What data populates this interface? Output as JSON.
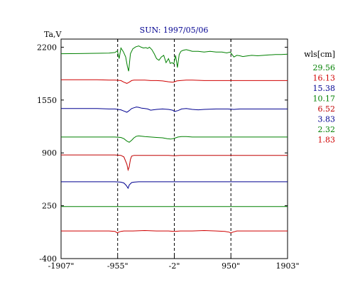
{
  "chart_data": {
    "type": "line",
    "title": "SUN: 1997/05/06",
    "ylabel": "Ta,V",
    "xlabel": "",
    "xlim": [
      -1907,
      1903
    ],
    "ylim": [
      -400,
      2300
    ],
    "x_ticks": [
      -1907,
      -955,
      -2,
      950,
      1903
    ],
    "x_tick_labels": [
      "-1907\"",
      "-955\"",
      "-2\"",
      "950\"",
      "1903\""
    ],
    "y_ticks": [
      2200,
      1550,
      900,
      250,
      -400
    ],
    "y_tick_labels": [
      "2200",
      "1550",
      "900",
      "250",
      "-400"
    ],
    "vertical_dashed_lines_x": [
      -955,
      -2,
      950
    ],
    "legend": {
      "title": "wls[cm]",
      "placement": "right"
    },
    "series": [
      {
        "name": "29.56",
        "color": "#008000",
        "x": [
          -1907,
          -1600,
          -1300,
          -1100,
          -1000,
          -960,
          -930,
          -900,
          -860,
          -820,
          -790,
          -770,
          -740,
          -700,
          -650,
          -600,
          -560,
          -520,
          -480,
          -450,
          -420,
          -380,
          -340,
          -300,
          -260,
          -220,
          -180,
          -140,
          -100,
          -70,
          -40,
          -10,
          20,
          50,
          80,
          110,
          140,
          170,
          200,
          250,
          300,
          400,
          500,
          600,
          700,
          800,
          880,
          940,
          960,
          1000,
          1050,
          1100,
          1150,
          1200,
          1300,
          1400,
          1500,
          1600,
          1700,
          1800,
          1903
        ],
        "y": [
          2120,
          2122,
          2125,
          2128,
          2135,
          2155,
          2060,
          2190,
          2145,
          2080,
          1960,
          1905,
          2120,
          2180,
          2205,
          2215,
          2200,
          2190,
          2195,
          2185,
          2200,
          2170,
          2120,
          2060,
          2040,
          2080,
          2100,
          2010,
          2060,
          2000,
          2010,
          1995,
          2100,
          1950,
          2110,
          2150,
          2160,
          2165,
          2170,
          2160,
          2150,
          2150,
          2140,
          2150,
          2140,
          2140,
          2130,
          2140,
          2120,
          2080,
          2100,
          2095,
          2085,
          2090,
          2100,
          2095,
          2100,
          2105,
          2110,
          2110,
          2115
        ]
      },
      {
        "name": "16.13",
        "color": "#d00000",
        "x": [
          -1907,
          -1600,
          -1300,
          -1100,
          -1000,
          -900,
          -850,
          -800,
          -760,
          -720,
          -680,
          -600,
          -500,
          -400,
          -300,
          -200,
          -100,
          -30,
          0,
          40,
          100,
          200,
          300,
          500,
          700,
          900,
          1100,
          1300,
          1500,
          1700,
          1903
        ],
        "y": [
          1800,
          1800,
          1800,
          1795,
          1795,
          1790,
          1770,
          1755,
          1770,
          1790,
          1795,
          1795,
          1795,
          1790,
          1790,
          1785,
          1775,
          1770,
          1775,
          1785,
          1790,
          1795,
          1795,
          1790,
          1790,
          1790,
          1790,
          1790,
          1790,
          1790,
          1790
        ]
      },
      {
        "name": "15.38",
        "color": "#000090",
        "x": [
          -1907,
          -1600,
          -1300,
          -1100,
          -1000,
          -900,
          -850,
          -800,
          -760,
          -720,
          -680,
          -640,
          -600,
          -550,
          -500,
          -450,
          -400,
          -300,
          -200,
          -100,
          -30,
          0,
          60,
          120,
          200,
          300,
          400,
          500,
          700,
          900,
          1000,
          1100,
          1300,
          1500,
          1700,
          1903
        ],
        "y": [
          1445,
          1445,
          1445,
          1440,
          1440,
          1430,
          1415,
          1400,
          1420,
          1445,
          1455,
          1465,
          1460,
          1450,
          1445,
          1440,
          1425,
          1435,
          1440,
          1435,
          1425,
          1410,
          1420,
          1440,
          1445,
          1435,
          1430,
          1435,
          1440,
          1440,
          1435,
          1440,
          1440,
          1440,
          1440,
          1440
        ]
      },
      {
        "name": "10.17",
        "color": "#008000",
        "x": [
          -1907,
          -1600,
          -1300,
          -1100,
          -1000,
          -900,
          -850,
          -800,
          -760,
          -720,
          -680,
          -640,
          -600,
          -500,
          -400,
          -300,
          -200,
          -120,
          -60,
          0,
          60,
          120,
          200,
          300,
          500,
          700,
          900,
          1100,
          1300,
          1500,
          1700,
          1903
        ],
        "y": [
          1095,
          1095,
          1095,
          1095,
          1095,
          1090,
          1075,
          1045,
          1030,
          1055,
          1085,
          1105,
          1110,
          1100,
          1095,
          1090,
          1085,
          1075,
          1070,
          1080,
          1095,
          1100,
          1100,
          1095,
          1095,
          1095,
          1095,
          1095,
          1095,
          1095,
          1095,
          1095
        ]
      },
      {
        "name": "6.52",
        "color": "#c00000",
        "x": [
          -1907,
          -1600,
          -1300,
          -1100,
          -1000,
          -900,
          -850,
          -800,
          -780,
          -760,
          -740,
          -720,
          -680,
          -600,
          -500,
          -400,
          -300,
          -100,
          0,
          100,
          300,
          500,
          700,
          900,
          1100,
          1300,
          1500,
          1700,
          1903
        ],
        "y": [
          875,
          875,
          875,
          875,
          875,
          870,
          850,
          760,
          690,
          730,
          820,
          860,
          870,
          870,
          870,
          870,
          870,
          870,
          865,
          870,
          870,
          870,
          870,
          870,
          870,
          870,
          870,
          870,
          870
        ]
      },
      {
        "name": "3.83",
        "color": "#000090",
        "x": [
          -1907,
          -1600,
          -1300,
          -1100,
          -1000,
          -900,
          -850,
          -810,
          -780,
          -760,
          -720,
          -680,
          -600,
          -400,
          -200,
          0,
          200,
          400,
          600,
          800,
          1000,
          1200,
          1400,
          1600,
          1903
        ],
        "y": [
          545,
          545,
          545,
          545,
          545,
          540,
          530,
          500,
          465,
          505,
          535,
          540,
          545,
          545,
          545,
          545,
          545,
          545,
          545,
          545,
          545,
          545,
          545,
          545,
          545
        ]
      },
      {
        "name": "2.32",
        "color": "#008000",
        "x": [
          -1907,
          -1600,
          -1300,
          -1000,
          -700,
          -400,
          -100,
          200,
          500,
          800,
          1100,
          1400,
          1700,
          1903
        ],
        "y": [
          240,
          240,
          240,
          240,
          240,
          240,
          240,
          240,
          240,
          240,
          240,
          240,
          240,
          240
        ]
      },
      {
        "name": "1.83",
        "color": "#d00000",
        "x": [
          -1907,
          -1600,
          -1300,
          -1100,
          -1000,
          -960,
          -940,
          -900,
          -850,
          -700,
          -500,
          -300,
          -100,
          0,
          100,
          300,
          500,
          700,
          850,
          920,
          950,
          980,
          1050,
          1200,
          1400,
          1600,
          1903
        ],
        "y": [
          -60,
          -60,
          -60,
          -60,
          -65,
          -85,
          -75,
          -65,
          -60,
          -60,
          -55,
          -60,
          -60,
          -65,
          -60,
          -60,
          -55,
          -60,
          -65,
          -75,
          -85,
          -75,
          -60,
          -60,
          -60,
          -60,
          -60
        ]
      }
    ]
  }
}
